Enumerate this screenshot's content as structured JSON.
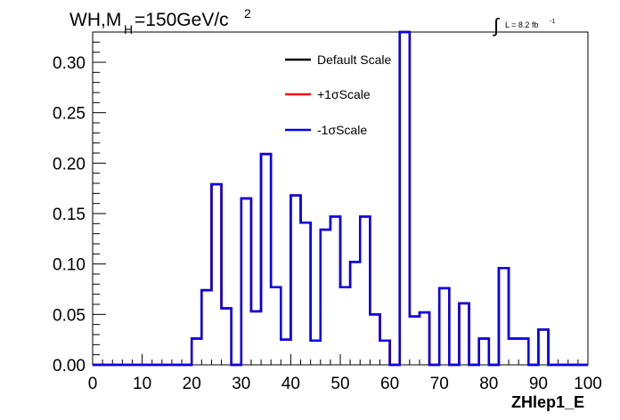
{
  "chart_data": {
    "type": "line",
    "title_main": "WH,M",
    "title_sub": "H",
    "title_rest": "=150GeV/c",
    "title_sup": "2",
    "lumi_label": "L = 8.2 fb",
    "lumi_sup": "-1",
    "xlabel": "ZHlep1_E",
    "ylabel": "",
    "xlim": [
      0,
      100
    ],
    "ylim": [
      0,
      0.33
    ],
    "x_ticks": [
      "0",
      "10",
      "20",
      "30",
      "40",
      "50",
      "60",
      "70",
      "80",
      "90",
      "100"
    ],
    "y_ticks": [
      "0.00",
      "0.05",
      "0.10",
      "0.15",
      "0.20",
      "0.25",
      "0.30"
    ],
    "bin_edges": [
      0,
      2,
      4,
      6,
      8,
      10,
      12,
      14,
      16,
      18,
      20,
      22,
      24,
      26,
      28,
      30,
      32,
      34,
      36,
      38,
      40,
      42,
      44,
      46,
      48,
      50,
      52,
      54,
      56,
      58,
      60,
      62,
      64,
      66,
      68,
      70,
      72,
      74,
      76,
      78,
      80,
      82,
      84,
      86,
      88,
      90,
      92,
      94,
      96,
      98,
      100
    ],
    "series": [
      {
        "name": "Default Scale",
        "color": "#000000",
        "values": [
          0,
          0,
          0,
          0,
          0,
          0,
          0,
          0,
          0,
          0,
          0.026,
          0.074,
          0.179,
          0.056,
          0,
          0.165,
          0.053,
          0.209,
          0.077,
          0.025,
          0.168,
          0.141,
          0.024,
          0.134,
          0.147,
          0.077,
          0.102,
          0.147,
          0.05,
          0.024,
          0,
          0.33,
          0.048,
          0.052,
          0,
          0.076,
          0,
          0.061,
          0,
          0.026,
          0,
          0.096,
          0.026,
          0.026,
          0,
          0.035,
          0,
          0,
          0,
          0
        ]
      },
      {
        "name": "+1σScale",
        "color": "#ff0000",
        "values": [
          0,
          0,
          0,
          0,
          0,
          0,
          0,
          0,
          0,
          0,
          0.026,
          0.074,
          0.179,
          0.056,
          0,
          0.165,
          0.053,
          0.209,
          0.077,
          0.025,
          0.168,
          0.141,
          0.024,
          0.134,
          0.147,
          0.077,
          0.102,
          0.147,
          0.05,
          0.024,
          0,
          0.33,
          0.048,
          0.052,
          0,
          0.076,
          0,
          0.061,
          0,
          0.026,
          0,
          0.096,
          0.026,
          0.026,
          0,
          0.035,
          0,
          0,
          0,
          0
        ]
      },
      {
        "name": "-1σScale",
        "color": "#0000ee",
        "values": [
          0,
          0,
          0,
          0,
          0,
          0,
          0,
          0,
          0,
          0,
          0.026,
          0.074,
          0.179,
          0.056,
          0,
          0.165,
          0.053,
          0.209,
          0.077,
          0.025,
          0.168,
          0.141,
          0.024,
          0.134,
          0.147,
          0.077,
          0.102,
          0.147,
          0.05,
          0.024,
          0,
          0.33,
          0.048,
          0.052,
          0,
          0.076,
          0,
          0.061,
          0,
          0.026,
          0,
          0.096,
          0.026,
          0.026,
          0,
          0.035,
          0,
          0,
          0,
          0
        ]
      }
    ],
    "legend_position": "top-center",
    "grid": false
  }
}
